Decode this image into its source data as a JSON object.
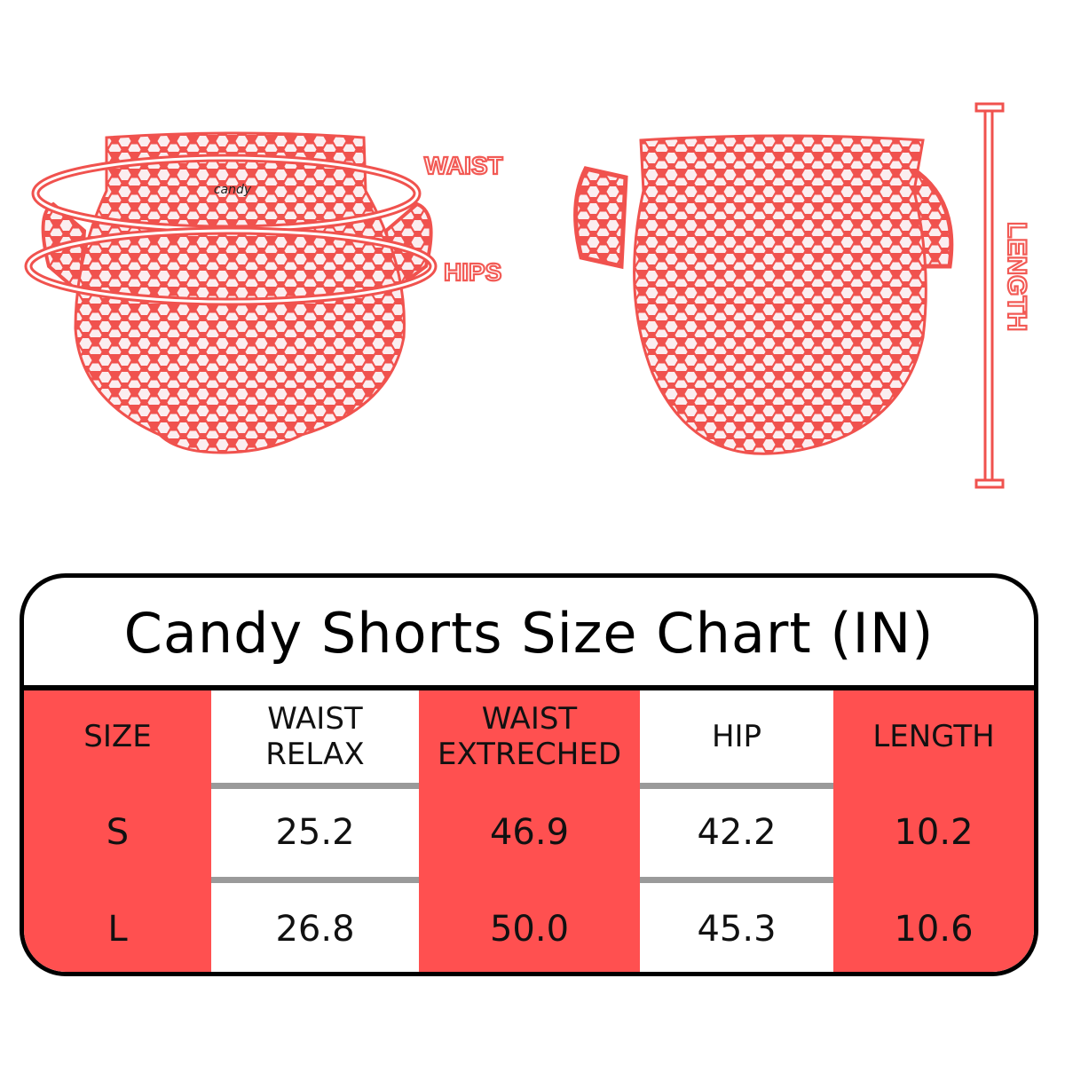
{
  "diagram": {
    "labels": {
      "waist": "WAIST",
      "hips": "HIPS",
      "length": "LENGTH"
    },
    "brand_tag": "candy"
  },
  "colors": {
    "accent_red": "#ff5050",
    "outline_red": "#f25a55",
    "border": "#000000",
    "separator": "#9a9a9a"
  },
  "size_chart": {
    "title": "Candy Shorts Size Chart (IN)",
    "headers": [
      {
        "line1": "SIZE",
        "line2": ""
      },
      {
        "line1": "WAIST",
        "line2": "RELAX"
      },
      {
        "line1": "WAIST",
        "line2": "EXTRECHED"
      },
      {
        "line1": "HIP",
        "line2": ""
      },
      {
        "line1": "LENGTH",
        "line2": ""
      }
    ],
    "rows": [
      [
        "S",
        "25.2",
        "46.9",
        "42.2",
        "10.2"
      ],
      [
        "L",
        "26.8",
        "50.0",
        "45.3",
        "10.6"
      ]
    ]
  }
}
